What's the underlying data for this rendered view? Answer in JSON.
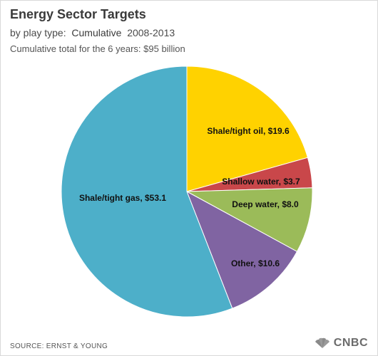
{
  "header": {
    "title": "Energy Sector Targets",
    "subtitle_prefix": "by play type:",
    "subtitle_mode": "Cumulative",
    "subtitle_range": "2008-2013",
    "note": "Cumulative total for the 6 years: $95 billion"
  },
  "footer": {
    "source": "SOURCE: ERNST & YOUNG",
    "brand": "CNBC"
  },
  "colors": {
    "shale_gas": "#4DAFC9",
    "shale_oil": "#FFD200",
    "shallow_water": "#C9474A",
    "deep_water": "#9BBB59",
    "other": "#8064A2"
  },
  "chart_data": {
    "type": "pie",
    "title": "Energy Sector Targets",
    "unit": "$ billion",
    "start": "12 o'clock",
    "direction": "clockwise",
    "slices": [
      {
        "label": "Shale/tight oil, $19.6",
        "value": 19.6,
        "color": "#FFD200"
      },
      {
        "label": "Shallow water, $3.7",
        "value": 3.7,
        "color": "#C9474A"
      },
      {
        "label": "Deep water, $8.0",
        "value": 8.0,
        "color": "#9BBB59"
      },
      {
        "label": "Other, $10.6",
        "value": 10.6,
        "color": "#8064A2"
      },
      {
        "label": "Shale/tight gas, $53.1",
        "value": 53.1,
        "color": "#4DAFC9"
      }
    ]
  }
}
